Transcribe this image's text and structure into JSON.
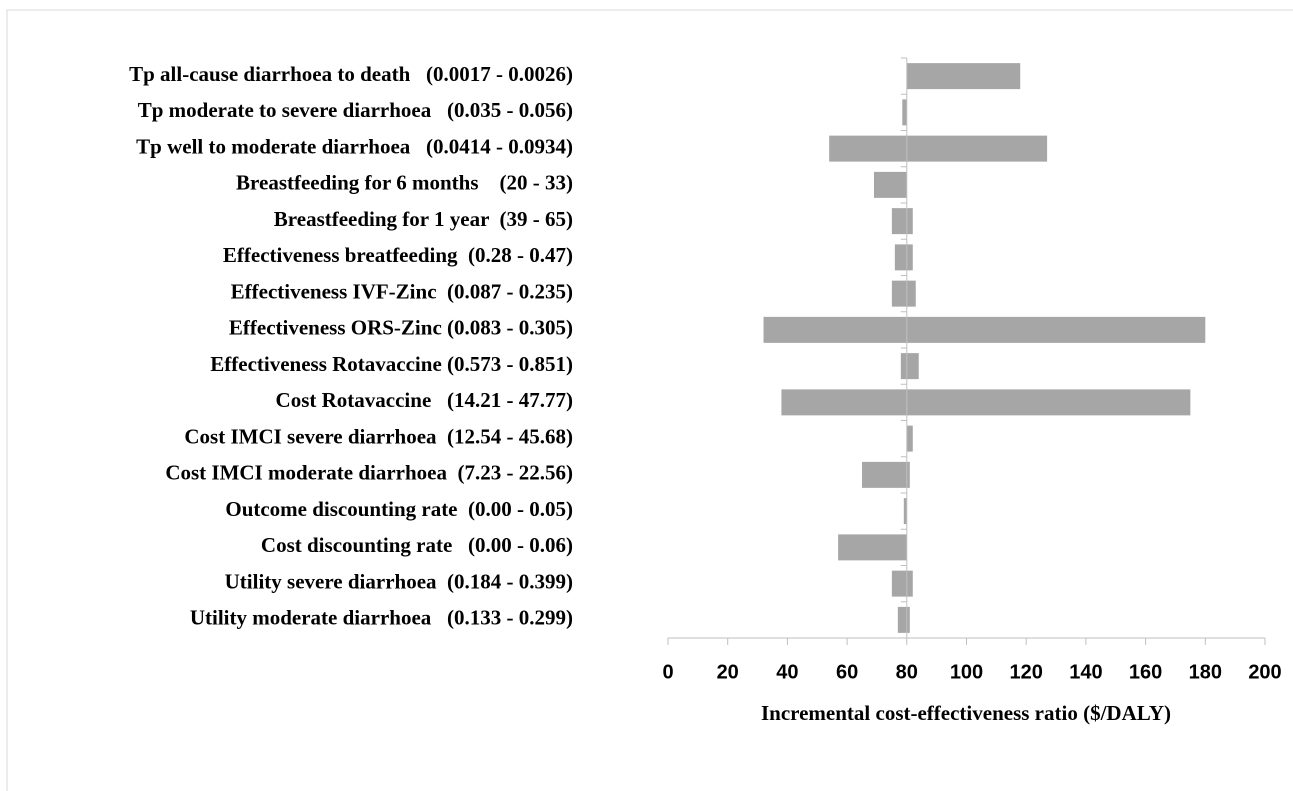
{
  "chart_data": {
    "type": "tornado",
    "categories": [
      "Tp all-cause diarrhoea to death   (0.0017 - 0.0026)",
      "Tp moderate to severe diarrhoea   (0.035 - 0.056)",
      "Tp well to moderate diarrhoea   (0.0414 - 0.0934)",
      "Breastfeeding for 6 months    (20 - 33)",
      "Breastfeeding for 1 year  (39 - 65)",
      "Effectiveness breatfeeding  (0.28 - 0.47)",
      "Effectiveness IVF-Zinc  (0.087 - 0.235)",
      "Effectiveness ORS-Zinc (0.083 - 0.305)",
      "Effectiveness Rotavaccine (0.573 - 0.851)",
      "Cost Rotavaccine   (14.21 - 47.77)",
      "Cost IMCI severe diarrhoea  (12.54 - 45.68)",
      "Cost IMCI moderate diarrhoea  (7.23 - 22.56)",
      "Outcome discounting rate  (0.00 - 0.05)",
      "Cost discounting rate   (0.00 - 0.06)",
      "Utility severe diarrhoea  (0.184 - 0.399)",
      "Utility moderate diarrhoea   (0.133 - 0.299)"
    ],
    "low": [
      80,
      78.5,
      54,
      69,
      75,
      76,
      75,
      32,
      78,
      38,
      80,
      65,
      79,
      57,
      75,
      77
    ],
    "high": [
      118,
      80,
      127,
      80,
      82,
      82,
      83,
      180,
      84,
      175,
      82,
      81,
      80,
      80,
      82,
      81
    ],
    "color": "#a6a6a6",
    "base_value": 80,
    "xlim": [
      0,
      200
    ],
    "xticks": [
      0,
      20,
      40,
      60,
      80,
      100,
      120,
      140,
      160,
      180,
      200
    ],
    "xlabel": "Incremental  cost-effectiveness ratio ($/DALY)"
  }
}
